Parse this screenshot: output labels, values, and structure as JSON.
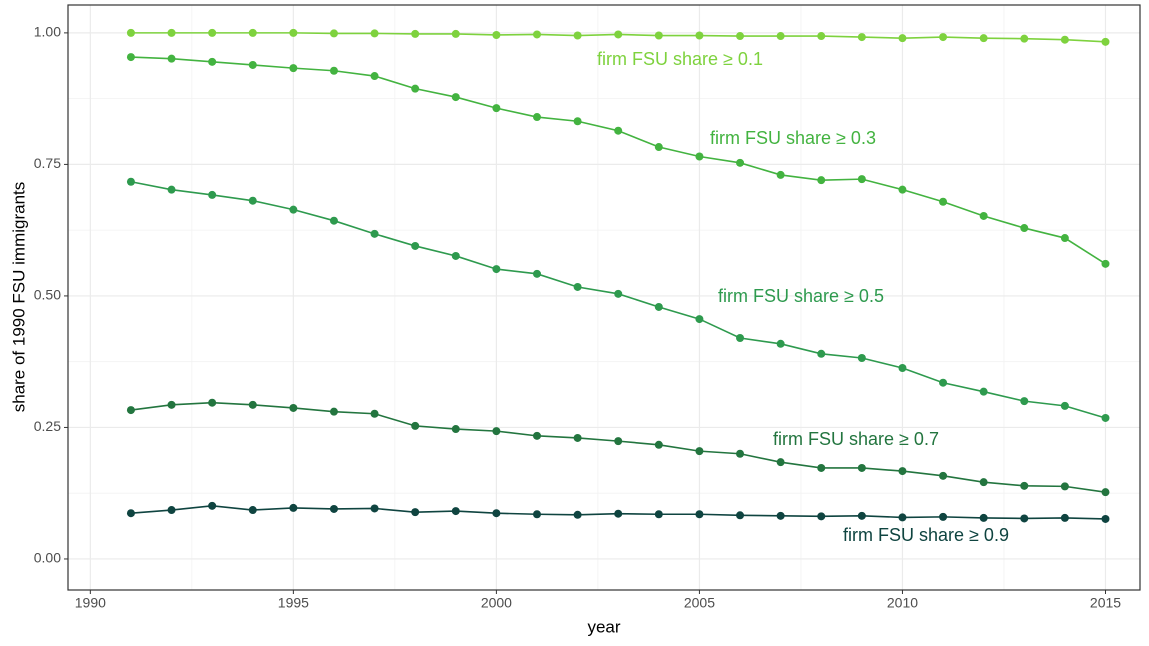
{
  "chart_data": {
    "type": "line",
    "x_label": "year",
    "y_label": "share of 1990 FSU immigrants",
    "x": [
      1991,
      1992,
      1993,
      1994,
      1995,
      1996,
      1997,
      1998,
      1999,
      2000,
      2001,
      2002,
      2003,
      2004,
      2005,
      2006,
      2007,
      2008,
      2009,
      2010,
      2011,
      2012,
      2013,
      2014,
      2015
    ],
    "series": [
      {
        "name": "firm FSU share ≥ 0.1",
        "color": "#7ed23e",
        "values": [
          1.0,
          1.0,
          1.0,
          1.0,
          1.0,
          0.999,
          0.999,
          0.998,
          0.998,
          0.996,
          0.997,
          0.995,
          0.997,
          0.995,
          0.995,
          0.994,
          0.994,
          0.994,
          0.992,
          0.99,
          0.992,
          0.99,
          0.989,
          0.987,
          0.983
        ]
      },
      {
        "name": "firm FSU share ≥ 0.3",
        "color": "#43b340",
        "values": [
          0.954,
          0.951,
          0.945,
          0.939,
          0.933,
          0.928,
          0.918,
          0.894,
          0.878,
          0.857,
          0.84,
          0.832,
          0.814,
          0.783,
          0.765,
          0.753,
          0.73,
          0.72,
          0.722,
          0.702,
          0.679,
          0.652,
          0.629,
          0.61,
          0.561
        ]
      },
      {
        "name": "firm FSU share ≥ 0.5",
        "color": "#2e9a4e",
        "values": [
          0.717,
          0.702,
          0.692,
          0.681,
          0.664,
          0.643,
          0.618,
          0.595,
          0.576,
          0.551,
          0.542,
          0.517,
          0.504,
          0.479,
          0.456,
          0.42,
          0.409,
          0.39,
          0.382,
          0.363,
          0.335,
          0.318,
          0.3,
          0.291,
          0.268
        ]
      },
      {
        "name": "firm FSU share ≥ 0.7",
        "color": "#23753f",
        "values": [
          0.283,
          0.293,
          0.297,
          0.293,
          0.287,
          0.28,
          0.276,
          0.253,
          0.247,
          0.243,
          0.234,
          0.23,
          0.224,
          0.217,
          0.205,
          0.2,
          0.184,
          0.173,
          0.173,
          0.167,
          0.158,
          0.146,
          0.139,
          0.138,
          0.127
        ]
      },
      {
        "name": "firm FSU share ≥ 0.9",
        "color": "#0f4440",
        "values": [
          0.087,
          0.093,
          0.101,
          0.093,
          0.097,
          0.095,
          0.096,
          0.089,
          0.091,
          0.087,
          0.085,
          0.084,
          0.086,
          0.085,
          0.085,
          0.083,
          0.082,
          0.081,
          0.082,
          0.079,
          0.08,
          0.078,
          0.077,
          0.078,
          0.076
        ]
      }
    ],
    "xlim": [
      1989.45,
      2015.85
    ],
    "xticks": [
      1990,
      1995,
      2000,
      2005,
      2010,
      2015
    ],
    "ylim": [
      -0.059,
      1.053
    ],
    "yticks": [
      {
        "value": 0,
        "label": "0.00"
      },
      0.25,
      {
        "value": 0.5,
        "label": "0.50"
      },
      0.75,
      {
        "value": 1,
        "label": "1.00"
      }
    ],
    "grid": true
  }
}
